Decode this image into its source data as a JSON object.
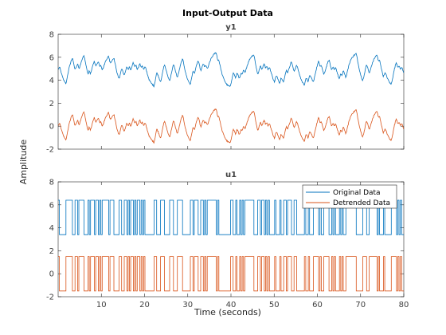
{
  "figure": {
    "title": "Input-Output Data",
    "ylabel": "Amplitude",
    "xlabel": "Time (seconds)"
  },
  "legend": {
    "entries": [
      "Original Data",
      "Detrended Data"
    ],
    "placement": "top-right of lower axes"
  },
  "colors": {
    "original": "#0072BD",
    "detrended": "#D95319",
    "axis": "#262626",
    "tick_text": "#404040"
  },
  "chart_data": [
    {
      "type": "line",
      "title": "y1",
      "xlim": [
        0,
        80
      ],
      "ylim": [
        -2,
        8
      ],
      "x_ticks": [
        10,
        20,
        30,
        40,
        50,
        60,
        70,
        80
      ],
      "x_tick_labels_visible": false,
      "y_ticks": [
        -2,
        0,
        2,
        4,
        6,
        8
      ],
      "grid": false,
      "sample_interval": 0.1,
      "series": [
        {
          "name": "Original Data",
          "color": "#0072BD",
          "mean": 4.9,
          "min": 3.2,
          "max": 6.4
        },
        {
          "name": "Detrended Data",
          "color": "#D95319",
          "mean": 0.0,
          "min": -1.7,
          "max": 1.5
        }
      ]
    },
    {
      "type": "line",
      "title": "u1",
      "xlim": [
        0,
        80
      ],
      "ylim": [
        -2,
        8
      ],
      "x_ticks": [
        10,
        20,
        30,
        40,
        50,
        60,
        70,
        80
      ],
      "y_ticks": [
        -2,
        0,
        2,
        4,
        6,
        8
      ],
      "grid": false,
      "sample_interval": 0.1,
      "series": [
        {
          "name": "Original Data",
          "color": "#0072BD",
          "levels": [
            3.4,
            6.4
          ]
        },
        {
          "name": "Detrended Data",
          "color": "#D95319",
          "levels": [
            -1.5,
            1.5
          ]
        }
      ]
    }
  ]
}
